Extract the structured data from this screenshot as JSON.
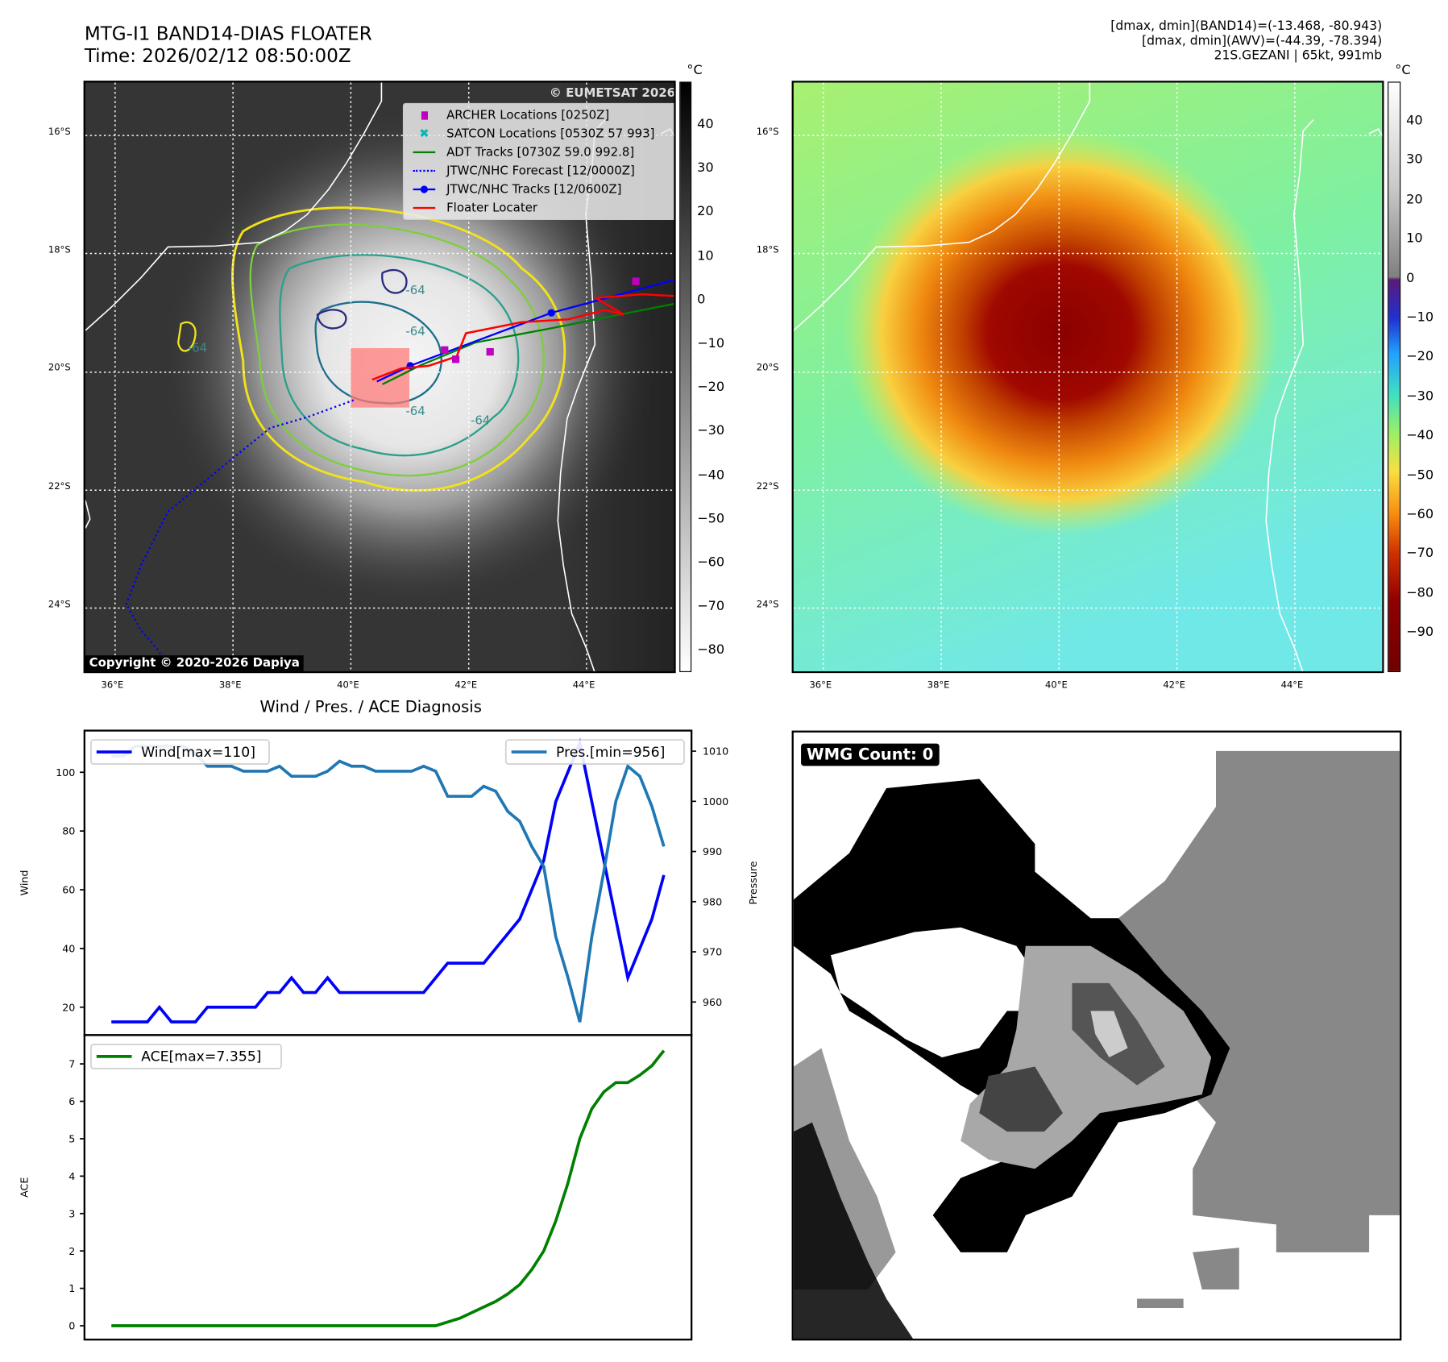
{
  "header": {
    "title_line1": "MTG-I1 BAND14-DIAS FLOATER",
    "title_line2": "Time: 2026/02/12 08:50:00Z",
    "info_line1": "[dmax, dmin](BAND14)=(-13.468, -80.943)",
    "info_line2": "[dmax, dmin](AWV)=(-44.39, -78.394)",
    "info_line3": "21S.GEZANI | 65kt, 991mb"
  },
  "maps": {
    "lat_labels": [
      "16°S",
      "18°S",
      "20°S",
      "22°S",
      "24°S"
    ],
    "lon_labels": [
      "36°E",
      "38°E",
      "40°E",
      "42°E",
      "44°E"
    ],
    "unit": "°C",
    "copyright": "Copyright © 2020-2026 Dapiya",
    "watermark": "© EUMETSAT 2026",
    "contour_labels": [
      "-64",
      "-64",
      "-64",
      "-64",
      "-64"
    ],
    "colorbar_left_ticks": [
      "40",
      "30",
      "20",
      "10",
      "0",
      "−10",
      "−20",
      "−30",
      "−40",
      "−50",
      "−60",
      "−70",
      "−80"
    ],
    "colorbar_right_ticks": [
      "40",
      "30",
      "20",
      "10",
      "0",
      "−10",
      "−20",
      "−30",
      "−40",
      "−50",
      "−60",
      "−70",
      "−80",
      "−90"
    ],
    "legend": [
      {
        "label": "ARCHER Locations [0250Z]",
        "color": "#c000c0",
        "icon": "square-marker"
      },
      {
        "label": "SATCON Locations [0530Z 57 993]",
        "color": "#00b8b8",
        "icon": "x-marker"
      },
      {
        "label": "ADT Tracks [0730Z 59.0 992.8]",
        "color": "#008000",
        "icon": "solid-line"
      },
      {
        "label": "JTWC/NHC Forecast [12/0000Z]",
        "color": "#0000ff",
        "icon": "dotted-line"
      },
      {
        "label": "JTWC/NHC Tracks [12/0600Z]",
        "color": "#0000ff",
        "icon": "line-dot"
      },
      {
        "label": "Floater Locater",
        "color": "#ff0000",
        "icon": "solid-line"
      }
    ]
  },
  "wmg": {
    "label": "WMG Count: 0"
  },
  "chart_data": [
    {
      "type": "line",
      "title": "Wind / Pres. / ACE Diagnosis",
      "xlabel": "",
      "ylabel": "Wind",
      "y2label": "Pressure",
      "x": [
        0,
        1,
        2,
        3,
        4,
        5,
        6,
        7,
        8,
        9,
        10,
        11,
        12,
        13,
        14,
        15,
        16,
        17,
        18,
        19,
        20,
        21,
        22,
        23,
        24,
        25,
        26,
        27,
        28,
        29,
        30,
        31,
        32,
        33,
        34,
        35,
        36,
        37,
        38,
        39,
        40,
        41,
        42,
        43,
        44,
        45,
        46
      ],
      "xlim": [
        -2.24,
        48.3
      ],
      "ylim": [
        10.5,
        114.2
      ],
      "y2lim": [
        953.4,
        1014.1
      ],
      "yticks": [
        20,
        40,
        60,
        80,
        100
      ],
      "y2ticks": [
        960,
        970,
        980,
        990,
        1000,
        1010
      ],
      "series": [
        {
          "name": "Wind[max=110]",
          "axis": "left",
          "color": "#0000ff",
          "values": [
            15,
            15,
            15,
            15,
            20,
            15,
            15,
            15,
            20,
            20,
            20,
            20,
            20,
            25,
            25,
            30,
            25,
            25,
            30,
            25,
            25,
            25,
            25,
            25,
            25,
            25,
            25,
            30,
            35,
            35,
            35,
            35,
            40,
            45,
            50,
            60,
            70,
            90,
            100,
            110,
            90,
            70,
            50,
            30,
            40,
            50,
            65
          ]
        },
        {
          "name": "Pres.[min=956]",
          "axis": "right",
          "color": "#1f77b4",
          "values": [
            1009,
            1009,
            1011,
            1011,
            1011,
            1011,
            1011,
            1009.5,
            1007,
            1007,
            1007,
            1006,
            1006,
            1006,
            1007,
            1005,
            1005,
            1005,
            1006,
            1008,
            1007,
            1007,
            1006,
            1006,
            1006,
            1006,
            1007,
            1006,
            1001,
            1001,
            1001,
            1003,
            1002,
            998,
            996,
            991,
            987,
            973,
            965,
            956,
            973,
            986,
            1000,
            1007,
            1005,
            999,
            991
          ]
        }
      ],
      "legend": [
        "upper-left",
        "upper-right"
      ]
    },
    {
      "type": "line",
      "title": "",
      "xlabel": "",
      "ylabel": "ACE",
      "x": [
        0,
        1,
        2,
        3,
        4,
        5,
        6,
        7,
        8,
        9,
        10,
        11,
        12,
        13,
        14,
        15,
        16,
        17,
        18,
        19,
        20,
        21,
        22,
        23,
        24,
        25,
        26,
        27,
        28,
        29,
        30,
        31,
        32,
        33,
        34,
        35,
        36,
        37,
        38,
        39,
        40,
        41,
        42,
        43,
        44,
        45,
        46
      ],
      "xlim": [
        -2.24,
        48.3
      ],
      "ylim": [
        -0.37,
        7.77
      ],
      "yticks": [
        0,
        1,
        2,
        3,
        4,
        5,
        6,
        7
      ],
      "series": [
        {
          "name": "ACE[max=7.355]",
          "color": "#008000",
          "values": [
            0,
            0,
            0,
            0,
            0,
            0,
            0,
            0,
            0,
            0,
            0,
            0,
            0,
            0,
            0,
            0,
            0,
            0,
            0,
            0,
            0,
            0,
            0,
            0,
            0,
            0,
            0,
            0,
            0.1,
            0.2,
            0.35,
            0.5,
            0.65,
            0.85,
            1.1,
            1.5,
            2.0,
            2.8,
            3.8,
            5.0,
            5.8,
            6.25,
            6.5,
            6.5,
            6.7,
            6.95,
            7.355
          ]
        }
      ],
      "legend": [
        "upper-left"
      ]
    }
  ]
}
